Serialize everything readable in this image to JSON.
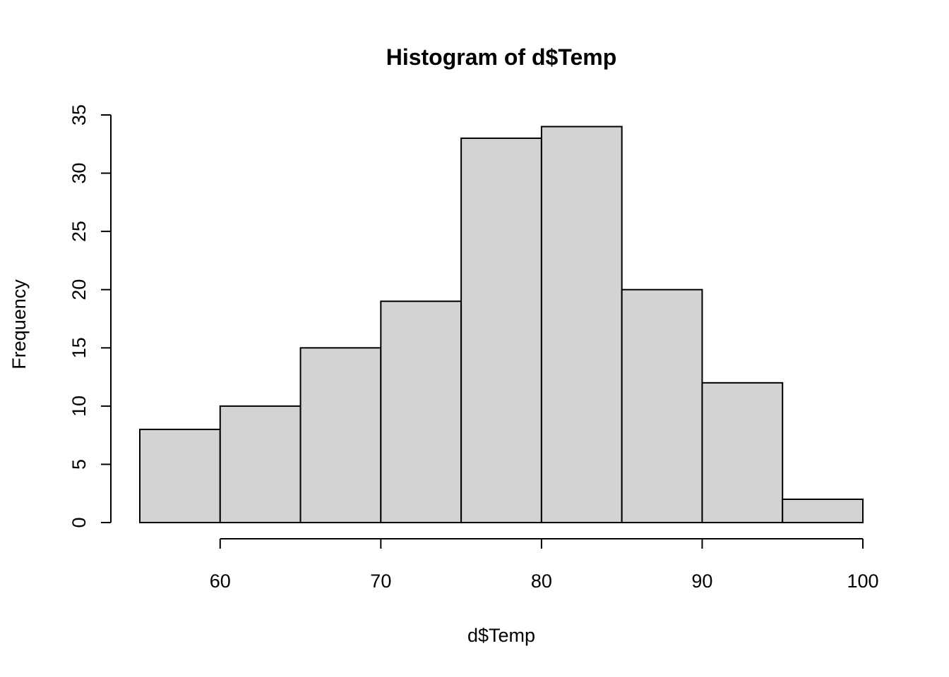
{
  "chart_data": {
    "type": "bar",
    "title": "Histogram of d$Temp",
    "xlabel": "d$Temp",
    "ylabel": "Frequency",
    "bin_edges": [
      55,
      60,
      65,
      70,
      75,
      80,
      85,
      90,
      95,
      100
    ],
    "values": [
      8,
      10,
      15,
      19,
      33,
      34,
      20,
      12,
      2
    ],
    "xlim": [
      55,
      100
    ],
    "ylim": [
      0,
      35
    ],
    "x_ticks": [
      60,
      70,
      80,
      90,
      100
    ],
    "y_ticks": [
      0,
      5,
      10,
      15,
      20,
      25,
      30,
      35
    ],
    "bar_color": "#d3d3d3",
    "grid": false,
    "legend": "none"
  }
}
